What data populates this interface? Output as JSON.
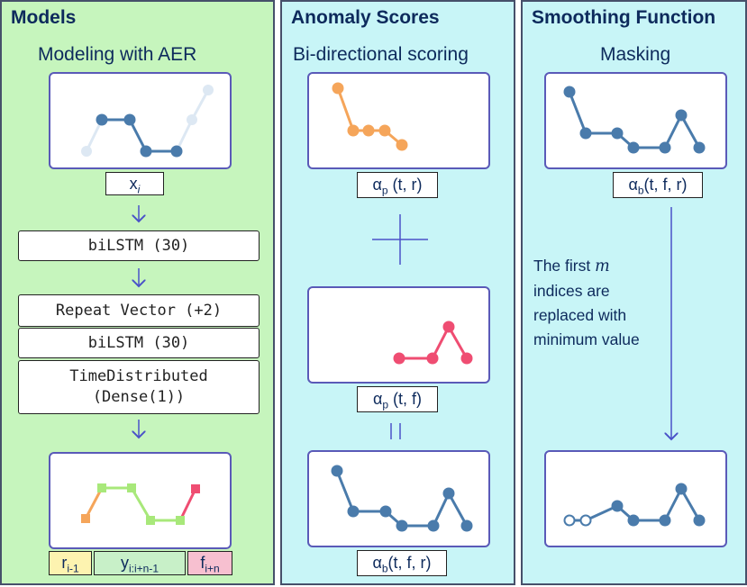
{
  "panels": {
    "models": {
      "title": "Models",
      "subtitle": "Modeling with AER",
      "input_label": "x",
      "input_label_sub": "i",
      "layers": [
        "biLSTM (30)",
        "Repeat Vector (+2)",
        "biLSTM (30)",
        "TimeDistributed",
        "(Dense(1))"
      ],
      "outputs": [
        {
          "main": "r",
          "sub": "i-1",
          "color": "#fdf3b0"
        },
        {
          "main": "y",
          "sub": "i:i+n-1",
          "color": "#c8f0c8"
        },
        {
          "main": "f",
          "sub": "i+n",
          "color": "#f7c0d0"
        }
      ]
    },
    "anomaly": {
      "title": "Anomaly Scores",
      "subtitle": "Bi-directional scoring",
      "label_p_r": {
        "main": "α",
        "sub": "p",
        "rest": " (t, r)"
      },
      "label_p_f": {
        "main": "α",
        "sub": "p",
        "rest": " (t, f)"
      },
      "label_b": {
        "main": "α",
        "sub": "b",
        "rest": "(t, f, r)"
      },
      "plus": "+",
      "equals": "||"
    },
    "smoothing": {
      "title": "Smoothing Function",
      "subtitle": "Masking",
      "label_b": {
        "main": "α",
        "sub": "b",
        "rest": "(t, f, r)"
      },
      "desc_line1": "The first",
      "desc_var": "m",
      "desc_line2": "indices are",
      "desc_line3": "replaced with",
      "desc_line4": "minimum value"
    }
  },
  "colors": {
    "series_blue": "#4a7bab",
    "series_orange": "#f5a55a",
    "series_pink": "#ef4d72",
    "series_green": "#a8e87a",
    "faded": "#dde8f3",
    "arrow": "#4a52c8"
  }
}
